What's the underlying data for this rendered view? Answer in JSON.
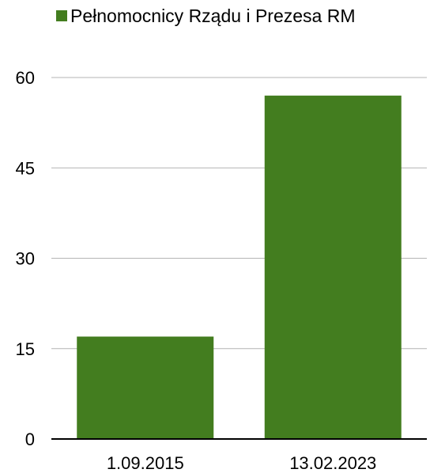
{
  "chart_data": {
    "type": "bar",
    "categories": [
      "1.09.2015",
      "13.02.2023"
    ],
    "series": [
      {
        "name": "Pełnomocnicy Rządu i Prezesa RM",
        "values": [
          17,
          57
        ],
        "color": "#437d1f"
      }
    ],
    "ylim": [
      0,
      60
    ],
    "yticks": [
      "0",
      "15",
      "30",
      "45",
      "60"
    ],
    "grid": true,
    "legend_position": "top"
  }
}
